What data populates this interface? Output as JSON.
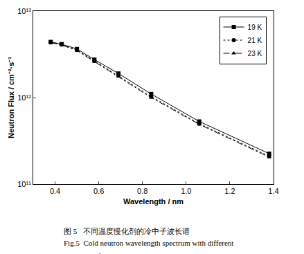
{
  "chart_data": {
    "type": "line",
    "x_label": "Wavelength / nm",
    "y_label": "Neutron Flux / cm⁻²·s⁻¹",
    "annotations": [
      "图 5   不同温度慢化剂的冷中子波长谱",
      "Fig.5  Cold neutron wavelength spectrum with different",
      "moderator temperature."
    ],
    "x": [
      0.38,
      0.43,
      0.5,
      0.58,
      0.69,
      0.84,
      1.06,
      1.38
    ],
    "series": [
      {
        "name": "19 K",
        "color": "#000000",
        "marker": "square",
        "line_style": "solid",
        "values": [
          4400000000000.0,
          4150000000000.0,
          3650000000000.0,
          2750000000000.0,
          1900000000000.0,
          1100000000000.0,
          530000000000.0,
          225000000000.0
        ]
      },
      {
        "name": "21 K",
        "color": "#000000",
        "marker": "circle",
        "line_style": "dot",
        "values": [
          4350000000000.0,
          4100000000000.0,
          3550000000000.0,
          2650000000000.0,
          1800000000000.0,
          1030000000000.0,
          500000000000.0,
          210000000000.0
        ]
      },
      {
        "name": "23 K",
        "color": "#000000",
        "marker": "triangle-up",
        "line_style": "dashdot",
        "values": [
          4300000000000.0,
          4050000000000.0,
          3500000000000.0,
          2600000000000.0,
          1750000000000.0,
          1000000000000.0,
          490000000000.0,
          205000000000.0
        ]
      }
    ],
    "xlim": [
      0.3,
      1.4
    ],
    "xticks": [
      0.4,
      0.6,
      0.8,
      {
        "value": 1,
        "label": "1.0"
      },
      1.2,
      1.4
    ],
    "ylim": [
      100000000000.0,
      10000000000000.0
    ],
    "yticks": [
      {
        "value": 100000000000.0,
        "label": "10¹¹"
      },
      {
        "value": 1000000000000.0,
        "label": "10¹²"
      },
      {
        "value": 10000000000000.0,
        "label": "10¹³"
      }
    ],
    "log": "y",
    "grid": false,
    "legend": "upper right"
  }
}
